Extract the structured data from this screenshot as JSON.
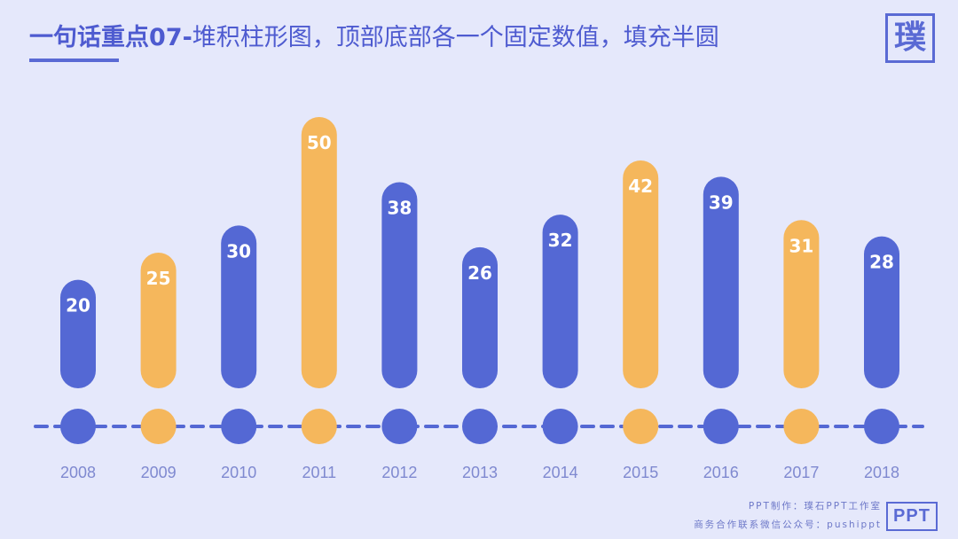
{
  "header": {
    "title_bold": "一句话重点07-",
    "title_rest": "堆积柱形图，顶部底部各一个固定数值，填充半圆",
    "logo": "璞"
  },
  "footer": {
    "line1": "PPT制作：璞石PPT工作室",
    "line2": "商务合作联系微信公众号：pushippt",
    "badge": "PPT"
  },
  "colors": {
    "blue": "#5468d4",
    "orange": "#f5b75c",
    "dash": "#5468d4",
    "axis_label": "#7f89d0"
  },
  "chart_data": {
    "type": "bar",
    "categories": [
      "2008",
      "2009",
      "2010",
      "2011",
      "2012",
      "2013",
      "2014",
      "2015",
      "2016",
      "2017",
      "2018"
    ],
    "values": [
      20,
      25,
      30,
      50,
      38,
      26,
      32,
      42,
      39,
      31,
      28
    ],
    "highlight": [
      false,
      true,
      false,
      true,
      false,
      false,
      false,
      true,
      false,
      true,
      false
    ],
    "ylim": [
      0,
      50
    ],
    "title": "",
    "xlabel": "",
    "ylabel": "",
    "grid": false,
    "legend": "none"
  }
}
